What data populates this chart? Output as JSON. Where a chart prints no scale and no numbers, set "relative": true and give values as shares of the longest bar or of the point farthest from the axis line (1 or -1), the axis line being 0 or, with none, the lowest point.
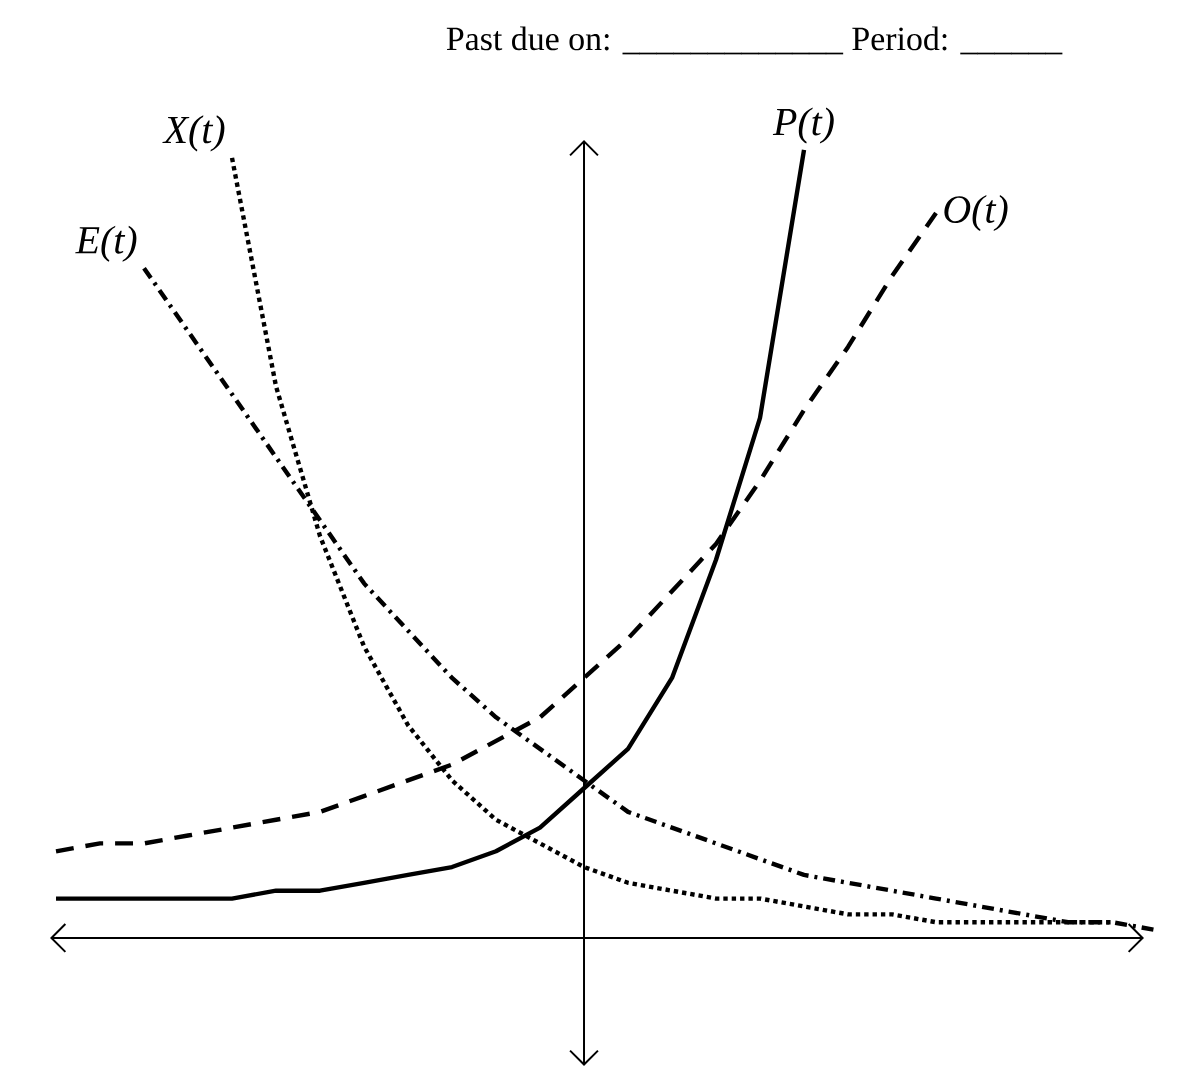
{
  "chart_data": {
    "type": "line",
    "title": "Past due on: _____________ Period: ______",
    "relative": true,
    "categories": [
      null,
      null,
      null,
      null,
      null,
      null,
      null,
      null,
      null,
      null,
      null,
      null,
      null,
      null,
      null,
      null,
      null,
      null,
      null,
      null,
      null,
      null,
      null,
      null,
      null,
      null,
      null
    ],
    "series": [
      {
        "name": "E(t)",
        "color": "#000000",
        "line_style": "dashdot",
        "values": [
          null,
          null,
          null,
          0.85,
          0.77,
          0.69,
          0.61,
          0.53,
          0.45,
          0.39,
          0.33,
          0.28,
          0.24,
          0.2,
          0.16,
          0.14,
          0.12,
          0.1,
          0.08,
          0.07,
          0.06,
          0.05,
          0.04,
          0.03,
          0.02,
          0.02,
          0.01
        ]
      },
      {
        "name": "X(t)",
        "color": "#000000",
        "line_style": "dotted",
        "values": [
          null,
          null,
          null,
          null,
          null,
          0.99,
          0.7,
          0.51,
          0.37,
          0.27,
          0.2,
          0.15,
          0.12,
          0.09,
          0.07,
          0.06,
          0.05,
          0.05,
          0.04,
          0.03,
          0.03,
          0.02,
          0.02,
          0.02,
          0.02,
          0.02,
          null
        ]
      },
      {
        "name": "P(t)",
        "color": "#000000",
        "line_style": "solid",
        "values": [
          null,
          0.05,
          0.05,
          0.05,
          0.05,
          0.05,
          0.06,
          0.06,
          0.07,
          0.08,
          0.09,
          0.11,
          0.14,
          0.19,
          0.24,
          0.33,
          0.48,
          0.66,
          1.0,
          null,
          null,
          null,
          null,
          null,
          null,
          null,
          null
        ]
      },
      {
        "name": "O(t)",
        "color": "#000000",
        "line_style": "dashed",
        "values": [
          null,
          0.11,
          0.12,
          0.12,
          0.13,
          0.14,
          0.15,
          0.16,
          0.18,
          0.2,
          0.22,
          0.25,
          0.28,
          0.33,
          0.38,
          0.44,
          0.5,
          0.58,
          0.67,
          0.75,
          0.84,
          0.92,
          null,
          null,
          null,
          null,
          null
        ]
      }
    ]
  }
}
